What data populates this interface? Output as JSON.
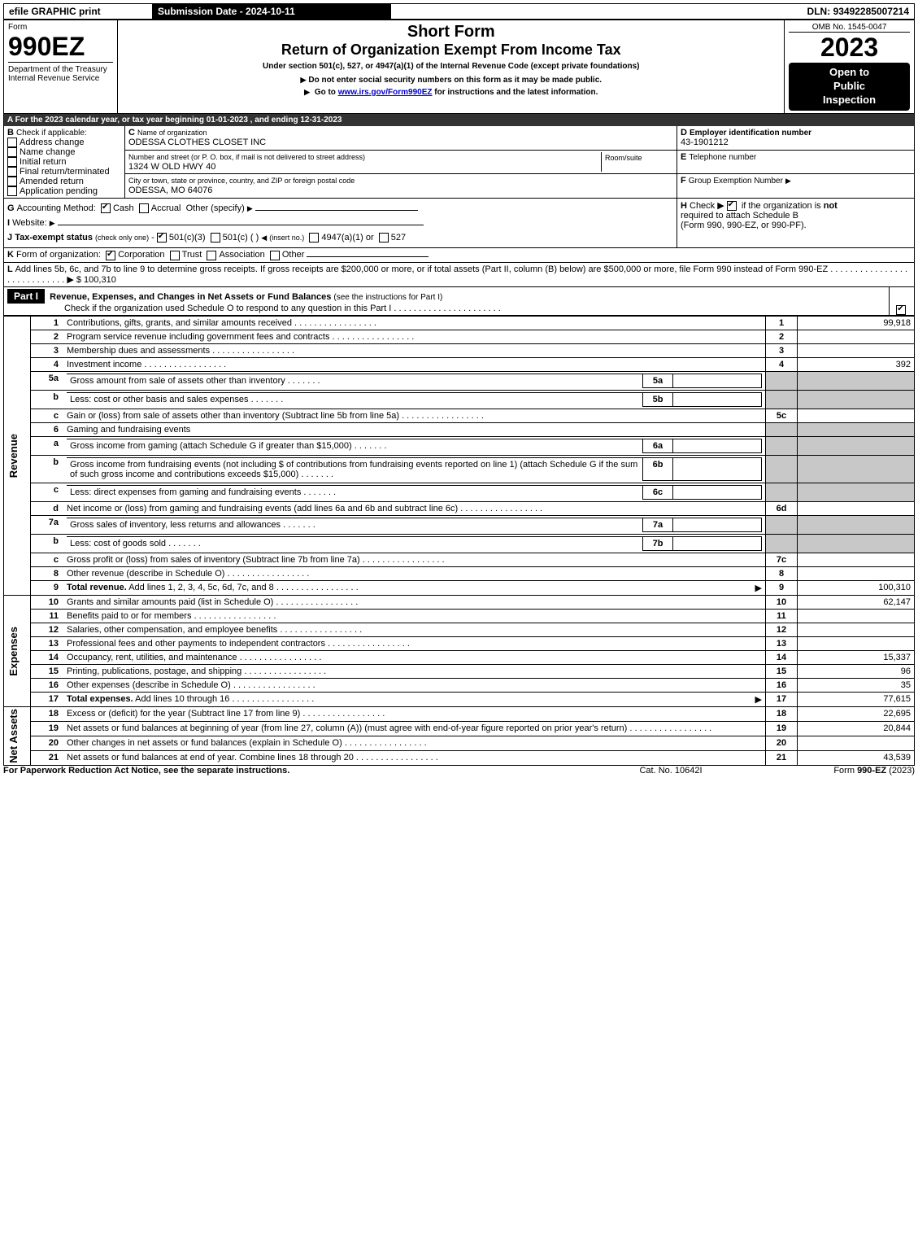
{
  "topbar": {
    "efile": "efile GRAPHIC print",
    "submission": "Submission Date - 2024-10-11",
    "dln_label": "DLN:",
    "dln": "93492285007214"
  },
  "header": {
    "form_word": "Form",
    "form_num": "990EZ",
    "dept": "Department of the Treasury",
    "irs": "Internal Revenue Service",
    "title1": "Short Form",
    "title2": "Return of Organization Exempt From Income Tax",
    "subtitle": "Under section 501(c), 527, or 4947(a)(1) of the Internal Revenue Code (except private foundations)",
    "warn": "Do not enter social security numbers on this form as it may be made public.",
    "goto_pre": "Go to ",
    "goto_link": "www.irs.gov/Form990EZ",
    "goto_post": " for instructions and the latest information.",
    "omb": "OMB No. 1545-0047",
    "year": "2023",
    "open1": "Open to",
    "open2": "Public",
    "open3": "Inspection"
  },
  "sectionA": {
    "a_text": "For the 2023 calendar year, or tax year beginning 01-01-2023 , and ending 12-31-2023",
    "b_label": "Check if applicable:",
    "b_opts": [
      "Address change",
      "Name change",
      "Initial return",
      "Final return/terminated",
      "Amended return",
      "Application pending"
    ],
    "c_label": "Name of organization",
    "c_name": "ODESSA CLOTHES CLOSET INC",
    "c_addr_label": "Number and street (or P. O. box, if mail is not delivered to street address)",
    "c_room": "Room/suite",
    "c_addr": "1324 W OLD HWY 40",
    "c_city_label": "City or town, state or province, country, and ZIP or foreign postal code",
    "c_city": "ODESSA, MO  64076",
    "d_label": "Employer identification number",
    "d_val": "43-1901212",
    "e_label": "Telephone number",
    "f_label": "Group Exemption Number",
    "g_label": "Accounting Method:",
    "g_cash": "Cash",
    "g_accrual": "Accrual",
    "g_other": "Other (specify)",
    "h_text1": "Check ▶",
    "h_text2": "if the organization is ",
    "h_not": "not",
    "h_text3": "required to attach Schedule B",
    "h_text4": "(Form 990, 990-EZ, or 990-PF).",
    "i_label": "Website:",
    "j_label": "Tax-exempt status",
    "j_sub": "(check only one)",
    "j_501c3": "501(c)(3)",
    "j_501c": "501(c) (   )",
    "j_insert": "(insert no.)",
    "j_4947": "4947(a)(1) or",
    "j_527": "527",
    "k_label": "Form of organization:",
    "k_corp": "Corporation",
    "k_trust": "Trust",
    "k_assoc": "Association",
    "k_other": "Other",
    "l_text": "Add lines 5b, 6c, and 7b to line 9 to determine gross receipts. If gross receipts are $200,000 or more, or if total assets (Part II, column (B) below) are $500,000 or more, file Form 990 instead of Form 990-EZ",
    "l_amount": "$ 100,310"
  },
  "part1": {
    "header": "Part I",
    "title": "Revenue, Expenses, and Changes in Net Assets or Fund Balances",
    "title_sub": "(see the instructions for Part I)",
    "check_line": "Check if the organization used Schedule O to respond to any question in this Part I"
  },
  "sections": {
    "revenue": "Revenue",
    "expenses": "Expenses",
    "netassets": "Net Assets"
  },
  "lines": [
    {
      "n": "1",
      "t": "Contributions, gifts, grants, and similar amounts received",
      "rn": "1",
      "v": "99,918"
    },
    {
      "n": "2",
      "t": "Program service revenue including government fees and contracts",
      "rn": "2",
      "v": ""
    },
    {
      "n": "3",
      "t": "Membership dues and assessments",
      "rn": "3",
      "v": ""
    },
    {
      "n": "4",
      "t": "Investment income",
      "rn": "4",
      "v": "392"
    },
    {
      "n": "5a",
      "t": "Gross amount from sale of assets other than inventory",
      "sub": "5a"
    },
    {
      "n": "b",
      "t": "Less: cost or other basis and sales expenses",
      "sub": "5b"
    },
    {
      "n": "c",
      "t": "Gain or (loss) from sale of assets other than inventory (Subtract line 5b from line 5a)",
      "rn": "5c",
      "v": ""
    },
    {
      "n": "6",
      "t": "Gaming and fundraising events"
    },
    {
      "n": "a",
      "t": "Gross income from gaming (attach Schedule G if greater than $15,000)",
      "sub": "6a"
    },
    {
      "n": "b",
      "t": "Gross income from fundraising events (not including $",
      "t2": "of contributions from fundraising events reported on line 1) (attach Schedule G if the sum of such gross income and contributions exceeds $15,000)",
      "sub": "6b"
    },
    {
      "n": "c",
      "t": "Less: direct expenses from gaming and fundraising events",
      "sub": "6c"
    },
    {
      "n": "d",
      "t": "Net income or (loss) from gaming and fundraising events (add lines 6a and 6b and subtract line 6c)",
      "rn": "6d",
      "v": ""
    },
    {
      "n": "7a",
      "t": "Gross sales of inventory, less returns and allowances",
      "sub": "7a"
    },
    {
      "n": "b",
      "t": "Less: cost of goods sold",
      "sub": "7b"
    },
    {
      "n": "c",
      "t": "Gross profit or (loss) from sales of inventory (Subtract line 7b from line 7a)",
      "rn": "7c",
      "v": ""
    },
    {
      "n": "8",
      "t": "Other revenue (describe in Schedule O)",
      "rn": "8",
      "v": ""
    },
    {
      "n": "9",
      "t": "Total revenue.",
      "t2": " Add lines 1, 2, 3, 4, 5c, 6d, 7c, and 8",
      "rn": "9",
      "v": "100,310",
      "bold": true,
      "arrow": true
    }
  ],
  "exp_lines": [
    {
      "n": "10",
      "t": "Grants and similar amounts paid (list in Schedule O)",
      "rn": "10",
      "v": "62,147"
    },
    {
      "n": "11",
      "t": "Benefits paid to or for members",
      "rn": "11",
      "v": ""
    },
    {
      "n": "12",
      "t": "Salaries, other compensation, and employee benefits",
      "rn": "12",
      "v": ""
    },
    {
      "n": "13",
      "t": "Professional fees and other payments to independent contractors",
      "rn": "13",
      "v": ""
    },
    {
      "n": "14",
      "t": "Occupancy, rent, utilities, and maintenance",
      "rn": "14",
      "v": "15,337"
    },
    {
      "n": "15",
      "t": "Printing, publications, postage, and shipping",
      "rn": "15",
      "v": "96"
    },
    {
      "n": "16",
      "t": "Other expenses (describe in Schedule O)",
      "rn": "16",
      "v": "35"
    },
    {
      "n": "17",
      "t": "Total expenses.",
      "t2": " Add lines 10 through 16",
      "rn": "17",
      "v": "77,615",
      "bold": true,
      "arrow": true
    }
  ],
  "na_lines": [
    {
      "n": "18",
      "t": "Excess or (deficit) for the year (Subtract line 17 from line 9)",
      "rn": "18",
      "v": "22,695"
    },
    {
      "n": "19",
      "t": "Net assets or fund balances at beginning of year (from line 27, column (A)) (must agree with end-of-year figure reported on prior year's return)",
      "rn": "19",
      "v": "20,844"
    },
    {
      "n": "20",
      "t": "Other changes in net assets or fund balances (explain in Schedule O)",
      "rn": "20",
      "v": ""
    },
    {
      "n": "21",
      "t": "Net assets or fund balances at end of year. Combine lines 18 through 20",
      "rn": "21",
      "v": "43,539"
    }
  ],
  "footer": {
    "left": "For Paperwork Reduction Act Notice, see the separate instructions.",
    "mid": "Cat. No. 10642I",
    "right_pre": "Form ",
    "right_form": "990-EZ",
    "right_post": " (2023)"
  }
}
